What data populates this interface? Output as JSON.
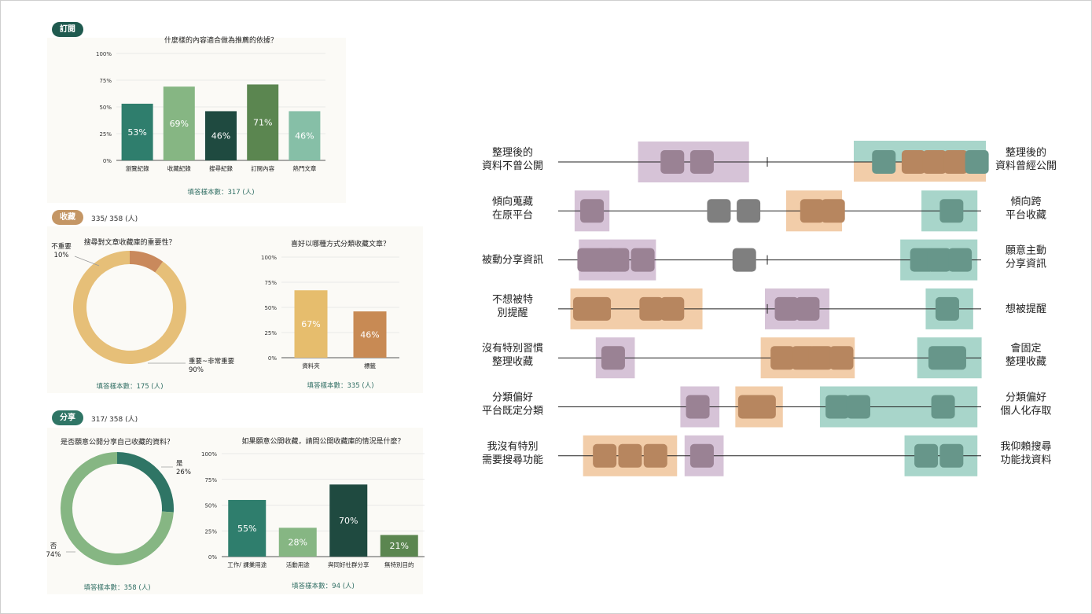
{
  "colors": {
    "dark_green": "#2f7565",
    "tan": "#c79a69",
    "purple": "#d5c2d7",
    "orange": "#f1cda9",
    "teal": "#a7d4c9",
    "gray_box": "#7f7f7f"
  },
  "sections": {
    "subscribe": {
      "badge": "訂閱",
      "color": "#1f5a4f"
    },
    "collect": {
      "badge": "收藏",
      "color": "#c49665",
      "count": "335/ 358 (人)"
    },
    "share": {
      "badge": "分享",
      "color": "#2f7565",
      "count": "317/ 358 (人)"
    }
  },
  "chart_data": [
    {
      "id": "subscribe-bar",
      "type": "bar",
      "title": "什麼樣的內容適合做為推薦的依據？",
      "categories": [
        "瀏覽紀錄",
        "收藏紀錄",
        "搜尋紀錄",
        "訂閱內容",
        "熱門文章"
      ],
      "values": [
        53,
        69,
        46,
        71,
        46
      ],
      "value_labels": [
        "53%",
        "69%",
        "46%",
        "71%",
        "46%"
      ],
      "colors": [
        "#2f7e6d",
        "#86b683",
        "#1f4a40",
        "#5b8650",
        "#86bfa7"
      ],
      "yticks": [
        "0%",
        "25%",
        "50%",
        "75%",
        "100%"
      ],
      "ylim": [
        0,
        100
      ],
      "footnote": "填答樣本數：317 (人)"
    },
    {
      "id": "collect-donut",
      "type": "pie",
      "title": "搜尋對文章收藏庫的重要性？",
      "slices": [
        {
          "label": "重要~非常重要",
          "value": 90,
          "value_label": "90%",
          "color": "#e6bf78"
        },
        {
          "label": "不重要",
          "value": 10,
          "value_label": "10%",
          "color": "#c9895c"
        }
      ],
      "footnote": "填答樣本數：175 (人)"
    },
    {
      "id": "collect-bar",
      "type": "bar",
      "title": "喜好以哪種方式分類收藏文章？",
      "categories": [
        "資料夾",
        "標籤"
      ],
      "values": [
        67,
        46
      ],
      "value_labels": [
        "67%",
        "46%"
      ],
      "colors": [
        "#e6bd6d",
        "#c88a54"
      ],
      "yticks": [
        "0%",
        "25%",
        "50%",
        "75%",
        "100%"
      ],
      "ylim": [
        0,
        100
      ],
      "footnote": "填答樣本數：335 (人)"
    },
    {
      "id": "share-donut",
      "type": "pie",
      "title": "是否願意公開分享自己收藏的資料？",
      "slices": [
        {
          "label": "是",
          "value": 26,
          "value_label": "26%",
          "color": "#2f7565"
        },
        {
          "label": "否",
          "value": 74,
          "value_label": "74%",
          "color": "#86b683"
        }
      ],
      "footnote": "填答樣本數：358 (人)"
    },
    {
      "id": "share-bar",
      "type": "bar",
      "title": "如果願意公開收藏，請問公開收藏庫的情況是什麼？",
      "categories": [
        "工作/ 課業用途",
        "活動用途",
        "與同好社群分享",
        "無特別目的"
      ],
      "values": [
        55,
        28,
        70,
        21
      ],
      "value_labels": [
        "55%",
        "28%",
        "70%",
        "21%"
      ],
      "colors": [
        "#2f7e6d",
        "#86b683",
        "#1f4a40",
        "#5b8650"
      ],
      "yticks": [
        "0%",
        "25%",
        "50%",
        "75%",
        "100%"
      ],
      "ylim": [
        0,
        100
      ],
      "footnote": "填答樣本數：94 (人)"
    }
  ],
  "spectrum": {
    "rows": [
      {
        "left": [
          "整理後的",
          "資料不曾公開"
        ],
        "right": [
          "整理後的",
          "資料曾經公開"
        ],
        "zones": [
          {
            "type": "purple",
            "from": 0.2,
            "to": 0.44
          },
          {
            "type": "teal",
            "from": 0.71,
            "to": 1.0,
            "split": true
          }
        ],
        "markers": [
          0.27,
          0.34,
          0.77,
          0.84,
          0.89,
          0.94,
          0.99
        ],
        "marker_types": [
          "purple",
          "purple",
          "teal",
          "tan",
          "tan",
          "tan",
          "teal"
        ],
        "midtick": true
      },
      {
        "left": [
          "傾向蒐藏",
          "在原平台"
        ],
        "right": [
          "傾向跨",
          "平台收藏"
        ],
        "zones": [
          {
            "type": "purple",
            "from": 0.05,
            "to": 0.11
          },
          {
            "type": "orange",
            "from": 0.55,
            "to": 0.66
          },
          {
            "type": "teal",
            "from": 0.87,
            "to": 0.98
          }
        ],
        "markers": [
          0.08,
          0.38,
          0.45,
          0.6,
          0.65,
          0.93
        ],
        "marker_types": [
          "purple",
          "gray",
          "gray",
          "tan",
          "tan",
          "teal"
        ],
        "midtick": false
      },
      {
        "left": [
          "被動分享資訊"
        ],
        "right": [
          "願意主動",
          "分享資訊"
        ],
        "zones": [
          {
            "type": "purple",
            "from": 0.06,
            "to": 0.22
          },
          {
            "type": "teal",
            "from": 0.82,
            "to": 0.98
          }
        ],
        "markers": [
          0.09,
          0.14,
          0.2,
          0.44,
          0.86,
          0.9,
          0.95
        ],
        "marker_types": [
          "purple",
          "purple",
          "purple",
          "gray",
          "teal",
          "teal",
          "teal"
        ],
        "midtick": true
      },
      {
        "left": [
          "不想被特",
          "別提醒"
        ],
        "right": [
          "想被提醒"
        ],
        "zones": [
          {
            "type": "orange",
            "from": 0.04,
            "to": 0.33
          },
          {
            "type": "purple",
            "from": 0.5,
            "to": 0.63
          },
          {
            "type": "teal",
            "from": 0.88,
            "to": 0.97
          }
        ],
        "markers": [
          0.08,
          0.22,
          0.27,
          0.54,
          0.59,
          0.92
        ],
        "marker_types": [
          "tan",
          "tan",
          "tan",
          "purple",
          "purple",
          "teal"
        ],
        "midtick": true
      },
      {
        "left": [
          "沒有特別習慣",
          "整理收藏"
        ],
        "right": [
          "會固定",
          "整理收藏"
        ],
        "zones": [
          {
            "type": "purple",
            "from": 0.1,
            "to": 0.17
          },
          {
            "type": "orange",
            "from": 0.49,
            "to": 0.69
          },
          {
            "type": "teal",
            "from": 0.86,
            "to": 0.99
          }
        ],
        "markers": [
          0.13,
          0.53,
          0.58,
          0.62,
          0.67,
          0.92
        ],
        "marker_types": [
          "purple",
          "tan",
          "tan",
          "tan",
          "tan",
          "teal"
        ],
        "midtick": false
      },
      {
        "left": [
          "分類偏好",
          "平台既定分類"
        ],
        "right": [
          "分類偏好",
          "個人化存取"
        ],
        "zones": [
          {
            "type": "purple",
            "from": 0.3,
            "to": 0.37
          },
          {
            "type": "orange",
            "from": 0.43,
            "to": 0.52
          },
          {
            "type": "teal",
            "from": 0.63,
            "to": 0.98
          }
        ],
        "markers": [
          0.33,
          0.47,
          0.66,
          0.71,
          0.91
        ],
        "marker_types": [
          "purple",
          "tan",
          "teal",
          "teal",
          "teal"
        ],
        "midtick": true
      },
      {
        "left": [
          "我沒有特別",
          "需要搜尋功能"
        ],
        "right": [
          "我仰賴搜尋",
          "功能找資料"
        ],
        "zones": [
          {
            "type": "orange",
            "from": 0.07,
            "to": 0.27
          },
          {
            "type": "purple",
            "from": 0.31,
            "to": 0.38
          },
          {
            "type": "teal",
            "from": 0.83,
            "to": 0.98
          }
        ],
        "markers": [
          0.11,
          0.17,
          0.23,
          0.34,
          0.87,
          0.93
        ],
        "marker_types": [
          "tan",
          "tan",
          "tan",
          "purple",
          "teal",
          "teal"
        ],
        "midtick": false
      }
    ],
    "marker_colors": {
      "purple": "#9a8294",
      "tan": "#b7865f",
      "teal": "#67968a",
      "gray": "#7f7f7f"
    },
    "zone_colors": {
      "purple": "#d6c3d7",
      "orange": "#f2cda9",
      "teal": "#a8d5ca"
    }
  }
}
